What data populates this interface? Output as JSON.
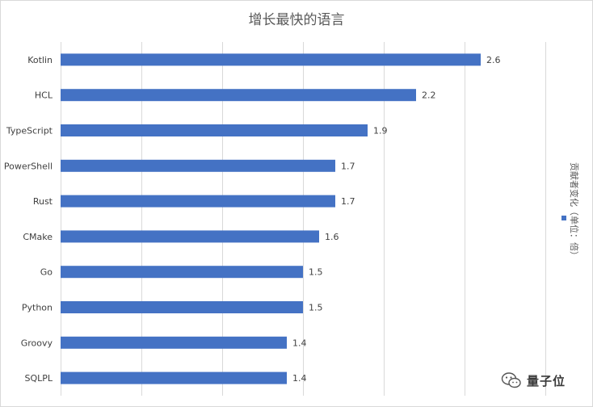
{
  "chart_data": {
    "type": "bar",
    "orientation": "horizontal",
    "title": "增长最快的语言",
    "categories": [
      "Kotlin",
      "HCL",
      "TypeScript",
      "PowerShell",
      "Rust",
      "CMake",
      "Go",
      "Python",
      "Groovy",
      "SQLPL"
    ],
    "series": [
      {
        "name": "贡献者变化（单位：倍）",
        "values": [
          2.6,
          2.2,
          1.9,
          1.7,
          1.7,
          1.6,
          1.5,
          1.5,
          1.4,
          1.4
        ]
      }
    ],
    "xlim": [
      0,
      3
    ],
    "xtick_step": 0.5,
    "grid": true,
    "data_labels": true,
    "legend_position": "right",
    "bar_color": "#4472c4"
  },
  "watermark": {
    "text": "量子位",
    "icon": "wechat-icon"
  }
}
